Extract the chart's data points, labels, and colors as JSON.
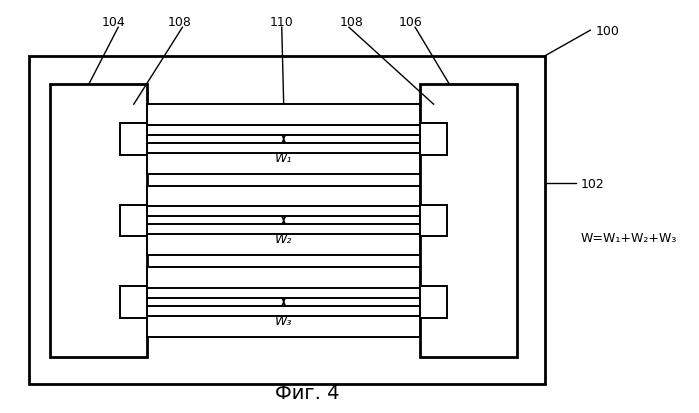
{
  "fig_title": "Фиг. 4",
  "background_color": "#ffffff",
  "border_color": "#000000",
  "label_100": "100",
  "label_102": "102",
  "label_104": "104",
  "label_106": "106",
  "label_108a": "108",
  "label_108b": "108",
  "label_110": "110",
  "formula": "W=W₁+W₂+W₃",
  "w1_label": "W₁",
  "w2_label": "W₂",
  "w3_label": "W₃",
  "lw": 1.8,
  "thin_lw": 1.4
}
